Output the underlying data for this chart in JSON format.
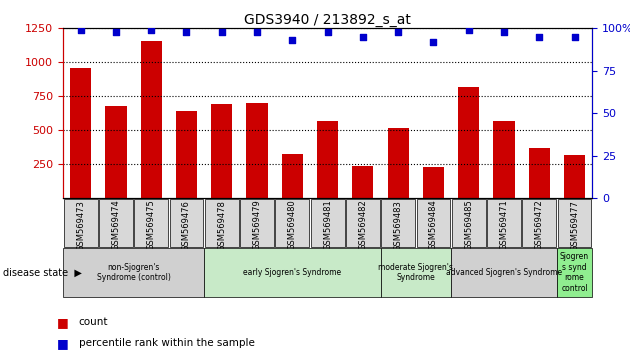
{
  "title": "GDS3940 / 213892_s_at",
  "samples": [
    "GSM569473",
    "GSM569474",
    "GSM569475",
    "GSM569476",
    "GSM569478",
    "GSM569479",
    "GSM569480",
    "GSM569481",
    "GSM569482",
    "GSM569483",
    "GSM569484",
    "GSM569485",
    "GSM569471",
    "GSM569472",
    "GSM569477"
  ],
  "counts": [
    960,
    680,
    1160,
    640,
    690,
    700,
    325,
    570,
    240,
    520,
    230,
    820,
    570,
    370,
    320
  ],
  "percentile_ranks": [
    99,
    98,
    99,
    98,
    98,
    98,
    93,
    98,
    95,
    98,
    92,
    99,
    98,
    95,
    95
  ],
  "ylim_left": [
    0,
    1250
  ],
  "ylim_right": [
    0,
    100
  ],
  "yticks_left": [
    250,
    500,
    750,
    1000,
    1250
  ],
  "yticks_right": [
    0,
    25,
    50,
    75,
    100
  ],
  "groups": [
    {
      "label": "non-Sjogren's\nSyndrome (control)",
      "start": 0,
      "end": 4,
      "color": "#d0d0d0"
    },
    {
      "label": "early Sjogren's Syndrome",
      "start": 4,
      "end": 9,
      "color": "#c8eac8"
    },
    {
      "label": "moderate Sjogren's\nSyndrome",
      "start": 9,
      "end": 11,
      "color": "#c8eac8"
    },
    {
      "label": "advanced Sjogren's Syndrome",
      "start": 11,
      "end": 14,
      "color": "#d0d0d0"
    },
    {
      "label": "Sjogren\ns synd\nrome\ncontrol",
      "start": 14,
      "end": 15,
      "color": "#90ee90"
    }
  ],
  "bar_color": "#cc0000",
  "dot_color": "#0000cc",
  "background_color": "#ffffff"
}
